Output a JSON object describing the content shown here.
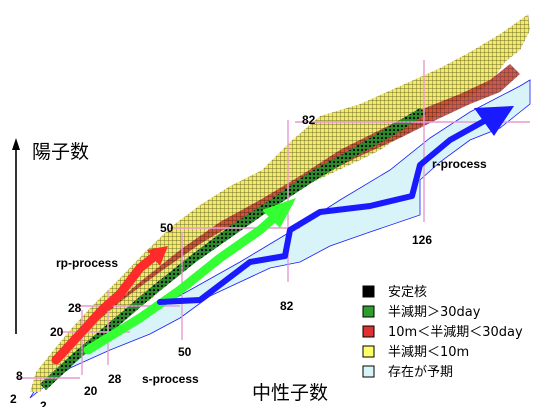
{
  "axes": {
    "y_label": "陽子数",
    "x_label": "中性子数"
  },
  "magic_numbers": {
    "proton": [
      "2",
      "8",
      "20",
      "28",
      "50",
      "82"
    ],
    "neutron": [
      "2",
      "20",
      "28",
      "50",
      "82",
      "126"
    ]
  },
  "processes": {
    "rp": "rp-process",
    "s": "s-process",
    "r": "r-process"
  },
  "process_colors": {
    "rp": "#ff2a2a",
    "s": "#33ff33",
    "r": "#1a1aff"
  },
  "legend": [
    {
      "label": "安定核",
      "color": "#000000"
    },
    {
      "label": "半減期＞30day",
      "color": "#2e9e2e"
    },
    {
      "label": "10m＜半減期＜30day",
      "color": "#e03030"
    },
    {
      "label": "半減期＜10m",
      "color": "#ffff66"
    },
    {
      "label": "存在が予期",
      "color": "#d8f4f8"
    }
  ],
  "colors": {
    "predicted_region": "#d8f4f8",
    "grid_cell": "#f5ee70",
    "grid_line": "#5a5a1a",
    "magic_line": "#e79ad2"
  }
}
